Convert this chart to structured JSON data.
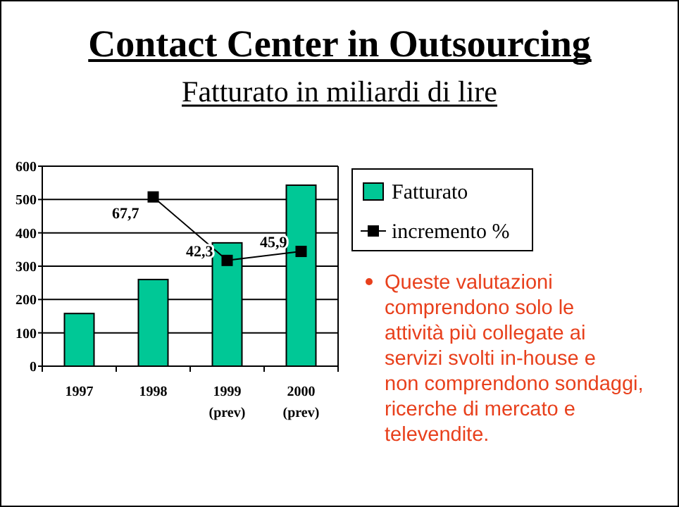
{
  "chart_data": {
    "type": "bar",
    "title": "Contact Center in Outsourcing",
    "subtitle": "Fatturato in miliardi di lire",
    "categories": [
      "1997",
      "1998",
      "1999\n(prev)",
      "2000\n(prev)"
    ],
    "series": [
      {
        "name": "Fatturato",
        "color": "#00c896",
        "values": [
          158,
          260,
          370,
          543
        ]
      },
      {
        "name": "incremento %",
        "type": "line",
        "axis": "y2",
        "color": "#000000",
        "marker": "square",
        "values": [
          null,
          67.7,
          42.3,
          45.9
        ],
        "value_labels": [
          null,
          "67,7",
          "42,3",
          "45,9"
        ]
      }
    ],
    "ylim": [
      0,
      600
    ],
    "yticks": [
      0,
      100,
      200,
      300,
      400,
      500,
      600
    ],
    "y2lim": [
      0,
      80
    ],
    "grid": "y",
    "legend": "top right",
    "annotations": [
      "Queste valutazioni comprendono solo le attività più collegate ai servizi svolti in-house e non comprendono sondaggi, ricerche di mercato e televendite."
    ]
  }
}
